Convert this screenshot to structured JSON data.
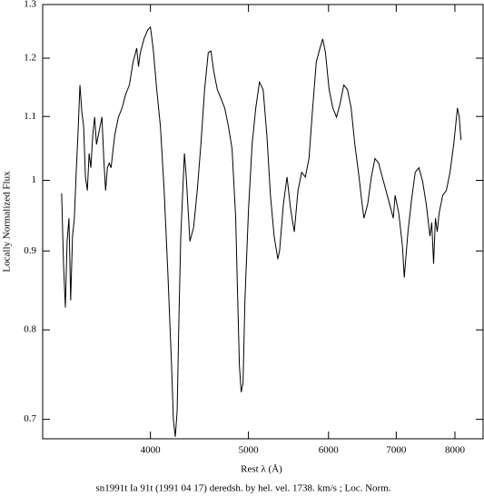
{
  "chart_data": {
    "type": "line",
    "title": "sn1991t Ia 91t (1991 04 17) deredsh. by hel. vel.  1738. km/s ;  Loc. Norm.",
    "x_label": "Rest λ (Å)",
    "y_label": "Locally Normalized Flux",
    "xscale": "log",
    "yscale": "log",
    "color": "#000000",
    "xlim": [
      3130,
      8530
    ],
    "ylim": [
      0.68,
      1.3
    ],
    "xticks": [
      4000,
      5000,
      6000,
      7000,
      8000
    ],
    "yticks": [
      0.7,
      0.8,
      0.9,
      1,
      1.1,
      1.2,
      1.3
    ],
    "x": [
      3268,
      3282,
      3296,
      3309,
      3323,
      3336,
      3350,
      3364,
      3378,
      3393,
      3407,
      3422,
      3436,
      3450,
      3465,
      3479,
      3493,
      3508,
      3523,
      3538,
      3553,
      3582,
      3597,
      3612,
      3627,
      3642,
      3657,
      3688,
      3719,
      3750,
      3781,
      3813,
      3845,
      3877,
      3893,
      3909,
      3942,
      3976,
      4000,
      4025,
      4058,
      4092,
      4127,
      4162,
      4197,
      4215,
      4233,
      4251,
      4268,
      4286,
      4322,
      4340,
      4358,
      4376,
      4413,
      4450,
      4487,
      4525,
      4563,
      4591,
      4620,
      4658,
      4697,
      4737,
      4777,
      4817,
      4857,
      4877,
      4898,
      4918,
      4939,
      4960,
      5001,
      5042,
      5084,
      5127,
      5170,
      5214,
      5257,
      5301,
      5346,
      5368,
      5414,
      5459,
      5504,
      5550,
      5597,
      5644,
      5691,
      5739,
      5787,
      5835,
      5884,
      5921,
      5958,
      6008,
      6059,
      6110,
      6161,
      6212,
      6264,
      6317,
      6370,
      6423,
      6477,
      6504,
      6559,
      6614,
      6669,
      6725,
      6781,
      6838,
      6895,
      6953,
      6982,
      7040,
      7099,
      7129,
      7189,
      7249,
      7309,
      7370,
      7432,
      7495,
      7558,
      7589,
      7621,
      7653,
      7685,
      7717,
      7781,
      7846,
      7911,
      7978,
      8046,
      8079,
      8112
    ],
    "values": [
      0.981,
      0.883,
      0.827,
      0.913,
      0.945,
      0.836,
      0.92,
      0.945,
      1.012,
      1.077,
      1.153,
      1.107,
      1.084,
      1.005,
      0.985,
      1.041,
      1.019,
      1.07,
      1.099,
      1.055,
      1.07,
      1.099,
      1.033,
      0.985,
      1.019,
      1.026,
      1.019,
      1.07,
      1.099,
      1.114,
      1.137,
      1.153,
      1.193,
      1.218,
      1.185,
      1.21,
      1.235,
      1.252,
      1.257,
      1.218,
      1.145,
      1.084,
      0.985,
      0.871,
      0.759,
      0.699,
      0.682,
      0.709,
      0.813,
      0.92,
      1.041,
      1.005,
      0.958,
      0.913,
      0.932,
      0.985,
      1.055,
      1.145,
      1.21,
      1.213,
      1.177,
      1.145,
      1.13,
      1.114,
      1.084,
      1.048,
      0.945,
      0.847,
      0.759,
      0.729,
      0.739,
      0.836,
      0.958,
      1.055,
      1.114,
      1.158,
      1.145,
      1.07,
      0.978,
      0.92,
      0.889,
      0.901,
      0.965,
      1.005,
      0.958,
      0.926,
      0.985,
      1.012,
      1.005,
      1.033,
      1.114,
      1.193,
      1.218,
      1.235,
      1.21,
      1.145,
      1.114,
      1.099,
      1.122,
      1.153,
      1.145,
      1.114,
      1.055,
      1.012,
      0.965,
      0.945,
      0.965,
      1.005,
      1.033,
      1.026,
      1.005,
      0.985,
      0.965,
      0.945,
      0.978,
      0.952,
      0.907,
      0.865,
      0.926,
      0.972,
      1.012,
      1.019,
      0.999,
      0.965,
      0.92,
      0.939,
      0.883,
      0.945,
      0.926,
      0.952,
      0.978,
      0.985,
      1.012,
      1.055,
      1.114,
      1.099,
      1.062
    ]
  }
}
